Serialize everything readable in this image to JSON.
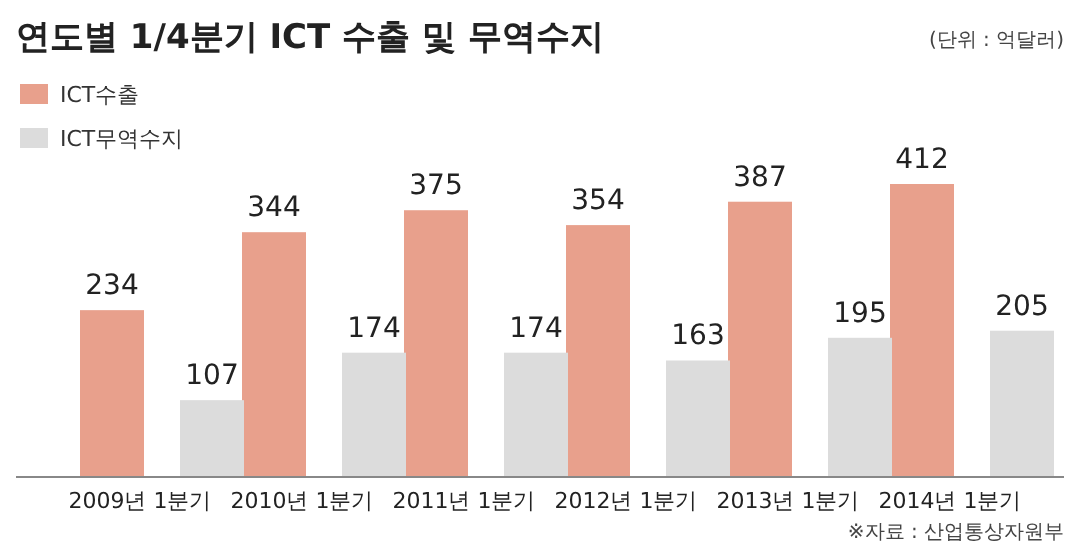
{
  "chart_data": {
    "type": "bar",
    "title": "연도별 1/4분기 ICT 수출 및 무역수지",
    "subtitle": "(단위 : 억달러)",
    "categories": [
      "2009년 1분기",
      "2010년 1분기",
      "2011년 1분기",
      "2012년 1분기",
      "2013년 1분기",
      "2014년 1분기"
    ],
    "series": [
      {
        "name": "ICT수출",
        "color": "#e8a08c",
        "values": [
          234,
          344,
          375,
          354,
          387,
          412
        ]
      },
      {
        "name": "ICT무역수지",
        "color": "#dcdcdc",
        "values": [
          107,
          174,
          174,
          163,
          195,
          205
        ]
      }
    ],
    "data_labels": true,
    "legend": "top left",
    "annotations": [
      "※자료 : 산업통상자원부"
    ]
  }
}
